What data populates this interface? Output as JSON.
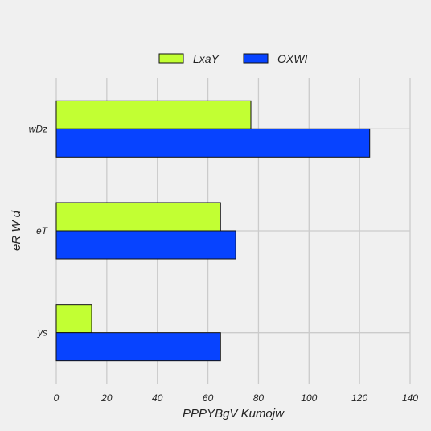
{
  "chart_data": {
    "type": "bar",
    "orientation": "horizontal",
    "categories": [
      "wDz",
      "eT",
      "ys"
    ],
    "series": [
      {
        "name": "LxaY",
        "color": "#c2ff33",
        "values": [
          77,
          65,
          14
        ]
      },
      {
        "name": "OXWI",
        "color": "#0743ff",
        "values": [
          124,
          71,
          65
        ]
      }
    ],
    "xlabel": "PPPYBgV Kumojw",
    "ylabel": "eR  W  d",
    "xlim": [
      0,
      140
    ],
    "xticks": [
      "0",
      "20",
      "40",
      "60",
      "80",
      "100",
      "120",
      "140"
    ],
    "grid": true,
    "legend_position": "top-center"
  }
}
